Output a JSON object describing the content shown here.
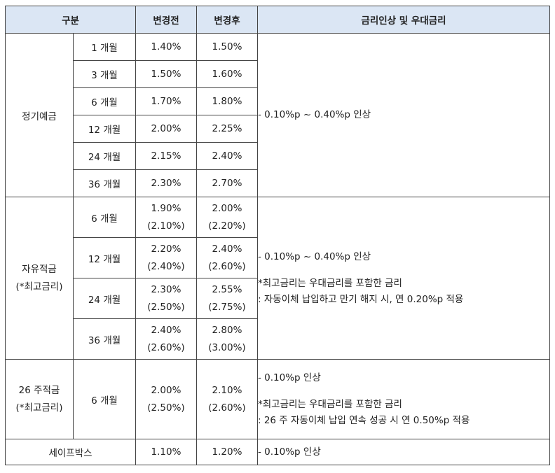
{
  "header": {
    "category": "구분",
    "before": "변경전",
    "after": "변경후",
    "note": "금리인상 및 우대금리"
  },
  "fixed_deposit": {
    "label": "정기예금",
    "rows": [
      {
        "term": "1 개월",
        "before": "1.40%",
        "after": "1.50%"
      },
      {
        "term": "3 개월",
        "before": "1.50%",
        "after": "1.60%"
      },
      {
        "term": "6 개월",
        "before": "1.70%",
        "after": "1.80%"
      },
      {
        "term": "12 개월",
        "before": "2.00%",
        "after": "2.25%"
      },
      {
        "term": "24 개월",
        "before": "2.15%",
        "after": "2.40%"
      },
      {
        "term": "36 개월",
        "before": "2.30%",
        "after": "2.70%"
      }
    ],
    "note": "- 0.10%p ~ 0.40%p 인상"
  },
  "free_savings": {
    "label": "자유적금",
    "sublabel": "(*최고금리)",
    "rows": [
      {
        "term": "6 개월",
        "before": "1.90%",
        "before_max": "(2.10%)",
        "after": "2.00%",
        "after_max": "(2.20%)"
      },
      {
        "term": "12 개월",
        "before": "2.20%",
        "before_max": "(2.40%)",
        "after": "2.40%",
        "after_max": "(2.60%)"
      },
      {
        "term": "24 개월",
        "before": "2.30%",
        "before_max": "(2.50%)",
        "after": "2.55%",
        "after_max": "(2.75%)"
      },
      {
        "term": "36 개월",
        "before": "2.40%",
        "before_max": "(2.60%)",
        "after": "2.80%",
        "after_max": "(3.00%)"
      }
    ],
    "note_line1": "- 0.10%p ~ 0.40%p 인상",
    "note_line2": "*최고금리는 우대금리를 포함한 금리",
    "note_line3": ": 자동이체 납입하고 만기 해지 시, 연 0.20%p 적용"
  },
  "weekly_savings": {
    "label": "26 주적금",
    "sublabel": "(*최고금리)",
    "term": "6 개월",
    "before": "2.00%",
    "before_max": "(2.50%)",
    "after": "2.10%",
    "after_max": "(2.60%)",
    "note_line1": "- 0.10%p 인상",
    "note_line2": "*최고금리는 우대금리를 포함한 금리",
    "note_line3": ": 26 주 자동이체 납입 연속 성공 시 연 0.50%p 적용"
  },
  "safe_box": {
    "label": "세이프박스",
    "before": "1.10%",
    "after": "1.20%",
    "note": "- 0.10%p 인상"
  }
}
